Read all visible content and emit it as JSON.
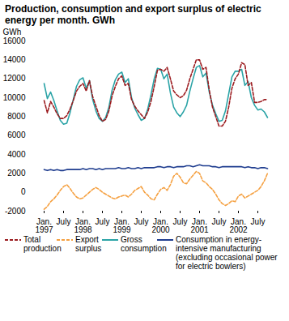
{
  "chart_data": {
    "type": "line",
    "title": "Production, consumption and export surplus of electric energy per month. GWh",
    "y_label": "GWh",
    "categories": [
      "Jan. 1997",
      null,
      null,
      null,
      null,
      null,
      "July",
      null,
      null,
      null,
      null,
      null,
      "Jan. 1998",
      null,
      null,
      null,
      null,
      null,
      "July",
      null,
      null,
      null,
      null,
      null,
      "Jan. 1999",
      null,
      null,
      null,
      null,
      null,
      "July",
      null,
      null,
      null,
      null,
      null,
      "Jan. 2000",
      null,
      null,
      null,
      null,
      null,
      "July",
      null,
      null,
      null,
      null,
      null,
      "Jan. 2001",
      null,
      null,
      null,
      null,
      null,
      "July",
      null,
      null,
      null,
      null,
      null,
      "Jan. 2002",
      null,
      null,
      null,
      null,
      null,
      "July",
      null,
      null,
      null
    ],
    "ylim": [
      -2000,
      16000
    ],
    "yticks": [
      -2000,
      0,
      2000,
      4000,
      6000,
      8000,
      10000,
      12000,
      14000,
      16000
    ],
    "grid": false,
    "series": [
      {
        "name": "Gross consumption",
        "color": "#2aa3a6",
        "line_style": "solid",
        "values": [
          11500,
          9900,
          10600,
          9700,
          8600,
          7600,
          7200,
          7300,
          8400,
          9800,
          11200,
          11900,
          12100,
          11000,
          11800,
          9800,
          8600,
          7800,
          7500,
          7900,
          9000,
          10800,
          11900,
          12500,
          12700,
          11600,
          12000,
          10000,
          8900,
          8200,
          7600,
          7800,
          8800,
          10300,
          12000,
          13100,
          13000,
          12000,
          12500,
          10500,
          9000,
          8400,
          8000,
          8500,
          9200,
          10700,
          12000,
          13200,
          13400,
          12200,
          12600,
          10600,
          9200,
          8300,
          7500,
          7600,
          8600,
          10400,
          12200,
          12800,
          12800,
          13000,
          11300,
          11700,
          10000,
          9200,
          8700,
          8800,
          8500,
          7900
        ]
      },
      {
        "name": "Total production",
        "color": "#9b1b1f",
        "line_style": "dashed",
        "values": [
          9700,
          8400,
          9600,
          9000,
          8300,
          7800,
          7800,
          8100,
          8800,
          9700,
          10700,
          11200,
          11500,
          10700,
          11800,
          10100,
          9100,
          8100,
          7500,
          7700,
          8600,
          10200,
          11200,
          12000,
          12300,
          11300,
          11500,
          9800,
          9100,
          8600,
          8200,
          7800,
          8500,
          9600,
          11200,
          12900,
          13000,
          12800,
          13200,
          12000,
          10700,
          10300,
          10000,
          10200,
          10800,
          12000,
          13000,
          14000,
          14000,
          13000,
          13200,
          10800,
          9000,
          8000,
          7000,
          7000,
          7500,
          9000,
          11000,
          12000,
          12500,
          13700,
          13500,
          11300,
          11600,
          9500,
          9500,
          9600,
          9800,
          9800
        ]
      },
      {
        "name": "Consumption in energy-intensive manufacturing (excluding occasional power for electric bowlers)",
        "color": "#1f3d8f",
        "line_style": "solid",
        "values": [
          2400,
          2300,
          2400,
          2300,
          2400,
          2300,
          2300,
          2400,
          2400,
          2400,
          2400,
          2400,
          2500,
          2400,
          2500,
          2500,
          2400,
          2500,
          2400,
          2500,
          2500,
          2500,
          2500,
          2600,
          2500,
          2500,
          2600,
          2500,
          2500,
          2600,
          2500,
          2600,
          2600,
          2600,
          2600,
          2700,
          2700,
          2600,
          2700,
          2700,
          2600,
          2700,
          2700,
          2700,
          2800,
          2800,
          2700,
          2800,
          2900,
          2800,
          2800,
          2800,
          2700,
          2700,
          2600,
          2700,
          2700,
          2700,
          2700,
          2700,
          2700,
          2700,
          2600,
          2700,
          2600,
          2600,
          2500,
          2600,
          2600,
          2500
        ]
      },
      {
        "name": "Export surplus",
        "color": "#f5a040",
        "line_style": "dashed",
        "values": [
          -1800,
          -1500,
          -1000,
          -700,
          -300,
          200,
          600,
          800,
          400,
          -100,
          -500,
          -700,
          -600,
          -300,
          0,
          300,
          500,
          300,
          0,
          -200,
          -400,
          -600,
          -700,
          -500,
          -400,
          -300,
          -500,
          -200,
          200,
          400,
          600,
          0,
          -300,
          -700,
          -800,
          -200,
          300,
          500,
          200,
          800,
          1700,
          2000,
          1600,
          1000,
          900,
          1400,
          1800,
          2200,
          2000,
          1200,
          1000,
          600,
          300,
          -200,
          -800,
          -1200,
          -1400,
          -1200,
          -900,
          -1000,
          -400,
          -200,
          -600,
          -400,
          -200,
          0,
          200,
          600,
          1200,
          2000
        ]
      }
    ],
    "legend": "bottom"
  }
}
